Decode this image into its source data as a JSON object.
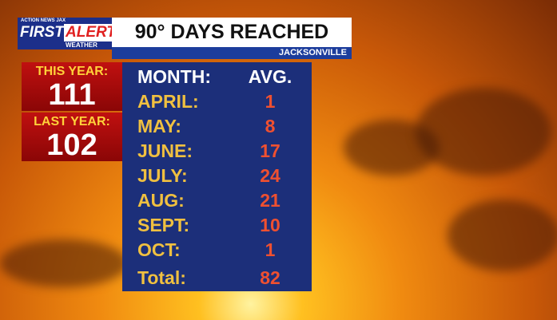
{
  "logo": {
    "station": "ACTION NEWS JAX",
    "first": "FIRST",
    "alert": "ALERT",
    "weather": "WEATHER"
  },
  "header": {
    "title": "90° DAYS REACHED",
    "location": "JACKSONVILLE"
  },
  "summary": [
    {
      "label": "THIS YEAR:",
      "value": "111"
    },
    {
      "label": "LAST YEAR:",
      "value": "102"
    }
  ],
  "table": {
    "columns": [
      "MONTH:",
      "AVG."
    ],
    "rows": [
      [
        "APRIL:",
        "1"
      ],
      [
        "MAY:",
        "8"
      ],
      [
        "JUNE:",
        "17"
      ],
      [
        "JULY:",
        "24"
      ],
      [
        "AUG:",
        "21"
      ],
      [
        "SEPT:",
        "10"
      ],
      [
        "OCT:",
        "1"
      ]
    ],
    "total": [
      "Total:",
      "82"
    ]
  }
}
